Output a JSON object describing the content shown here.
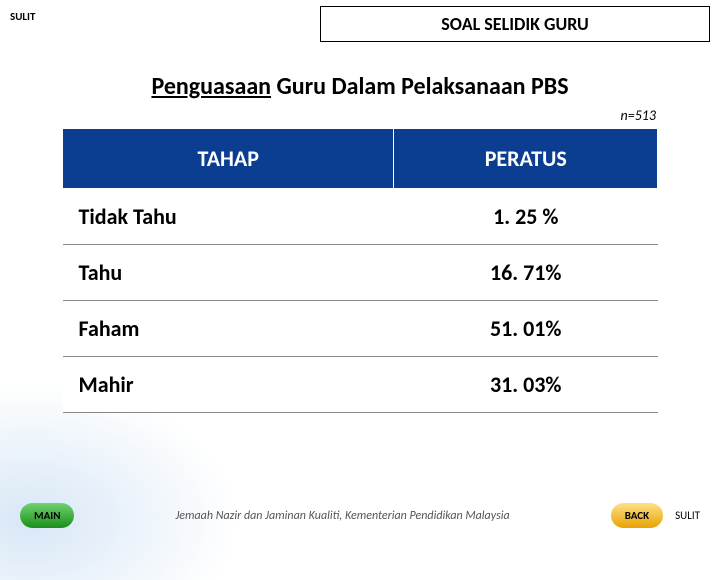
{
  "classification": "SULIT",
  "header_box": "SOAL SELIDIK GURU",
  "title_underlined": "Penguasaan",
  "title_rest": " Guru Dalam Pelaksanaan PBS",
  "n_label": "n=513",
  "table": {
    "columns": [
      "TAHAP",
      "PERATUS"
    ],
    "rows": [
      {
        "level": "Tidak Tahu",
        "pct": "1. 25 %"
      },
      {
        "level": "Tahu",
        "pct": "16. 71%"
      },
      {
        "level": "Faham",
        "pct": "51. 01%"
      },
      {
        "level": "Mahir",
        "pct": "31. 03%"
      }
    ],
    "header_bg": "#0b3d91",
    "header_fg": "#ffffff",
    "cell_bg": "#ffffff",
    "cell_fg": "#000000",
    "border_color": "#888888",
    "header_fontsize": 22,
    "cell_fontsize": 22,
    "col_widths_pct": [
      50,
      50
    ]
  },
  "buttons": {
    "main": "MAIN",
    "back": "BACK"
  },
  "footer_text": "Jemaah Nazir dan Jaminan Kualiti, Kementerian Pendidikan Malaysia",
  "classification_bottom": "SULIT",
  "colors": {
    "main_btn_top": "#6fd36f",
    "main_btn_bottom": "#1a8f1a",
    "back_btn_top": "#ffe08a",
    "back_btn_bottom": "#e8a200",
    "page_bg": "#ffffff"
  }
}
